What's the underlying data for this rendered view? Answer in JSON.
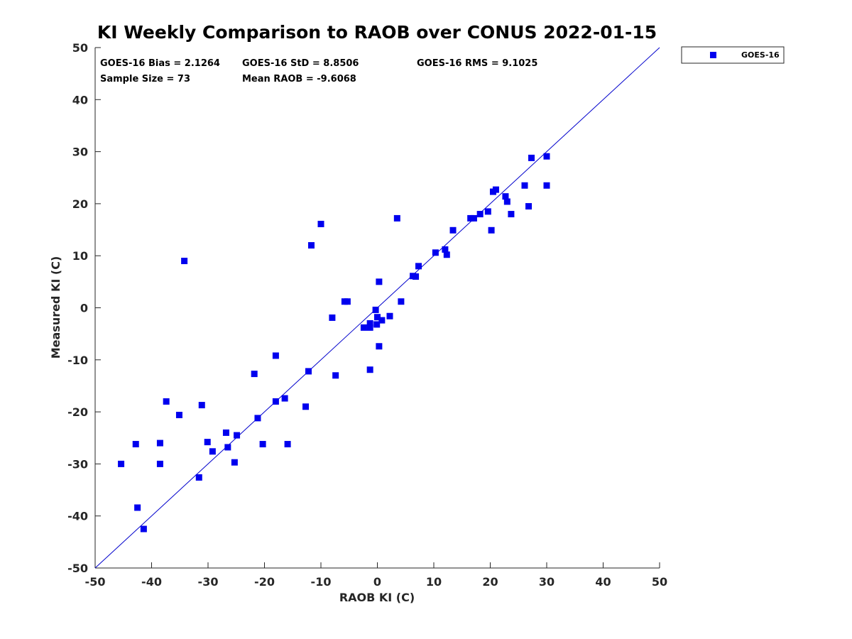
{
  "chart_data": {
    "type": "scatter",
    "title": "KI Weekly Comparison to RAOB over CONUS 2022-01-15",
    "xlabel": "RAOB KI (C)",
    "ylabel": "Measured KI (C)",
    "xlim": [
      -50,
      50
    ],
    "ylim": [
      -50,
      50
    ],
    "xticks": [
      "-50",
      "-40",
      "-30",
      "-20",
      "-10",
      "0",
      "10",
      "20",
      "30",
      "40",
      "50"
    ],
    "yticks": [
      "-50",
      "-40",
      "-30",
      "-20",
      "-10",
      "0",
      "10",
      "20",
      "30",
      "40",
      "50"
    ],
    "grid": false,
    "legend_position": "outside-top-right",
    "reference_line": {
      "from": [
        -50,
        -50
      ],
      "to": [
        50,
        50
      ],
      "color": "#0000cc"
    },
    "stats": {
      "bias": "GOES-16 Bias = 2.1264",
      "std": "GOES-16 StD = 8.8506",
      "rms": "GOES-16 RMS = 9.1025",
      "sample": "Sample Size = 73",
      "mean": "Mean RAOB = -9.6068"
    },
    "series": [
      {
        "name": "GOES-16",
        "color": "#0000ee",
        "marker": "square",
        "x": [
          -45.4,
          -42.8,
          -42.5,
          -41.4,
          -38.5,
          -38.5,
          -37.4,
          -35.1,
          -34.2,
          -31.6,
          -31.1,
          -30.1,
          -29.2,
          -26.8,
          -26.5,
          -25.3,
          -24.9,
          -21.8,
          -21.2,
          -20.3,
          -18.0,
          -18.0,
          -16.4,
          -15.9,
          -12.7,
          -12.2,
          -11.7,
          -10.0,
          -8.0,
          -7.4,
          -5.8,
          -5.3,
          -2.4,
          -1.3,
          -1.3,
          -1.3,
          -0.3,
          -0.1,
          0.0,
          0.3,
          0.3,
          0.8,
          2.2,
          3.5,
          4.2,
          6.3,
          6.8,
          7.3,
          10.3,
          12.0,
          12.3,
          13.4,
          16.5,
          17.1,
          18.2,
          19.6,
          20.2,
          20.5,
          21.0,
          22.7,
          23.0,
          23.7,
          26.1,
          26.8,
          27.3,
          30.0,
          30.0
        ],
        "y": [
          -30.0,
          -26.2,
          -38.4,
          -42.5,
          -30.0,
          -26.0,
          -18.0,
          -20.6,
          9.0,
          -32.6,
          -18.7,
          -25.8,
          -27.6,
          -24.0,
          -26.8,
          -29.7,
          -24.5,
          -12.7,
          -21.2,
          -26.2,
          -18.0,
          -9.2,
          -17.4,
          -26.2,
          -19.0,
          -12.2,
          12.0,
          16.1,
          -1.9,
          -13.0,
          1.2,
          1.2,
          -3.8,
          -11.9,
          -3.8,
          -3.0,
          -0.4,
          -3.2,
          -1.8,
          -7.4,
          5.0,
          -2.4,
          -1.6,
          17.2,
          1.2,
          6.1,
          6.0,
          8.0,
          10.6,
          11.2,
          10.2,
          14.9,
          17.2,
          17.2,
          18.0,
          18.5,
          14.9,
          22.3,
          22.7,
          21.4,
          20.4,
          18.0,
          23.5,
          19.5,
          28.8,
          29.1,
          23.5
        ]
      }
    ]
  }
}
